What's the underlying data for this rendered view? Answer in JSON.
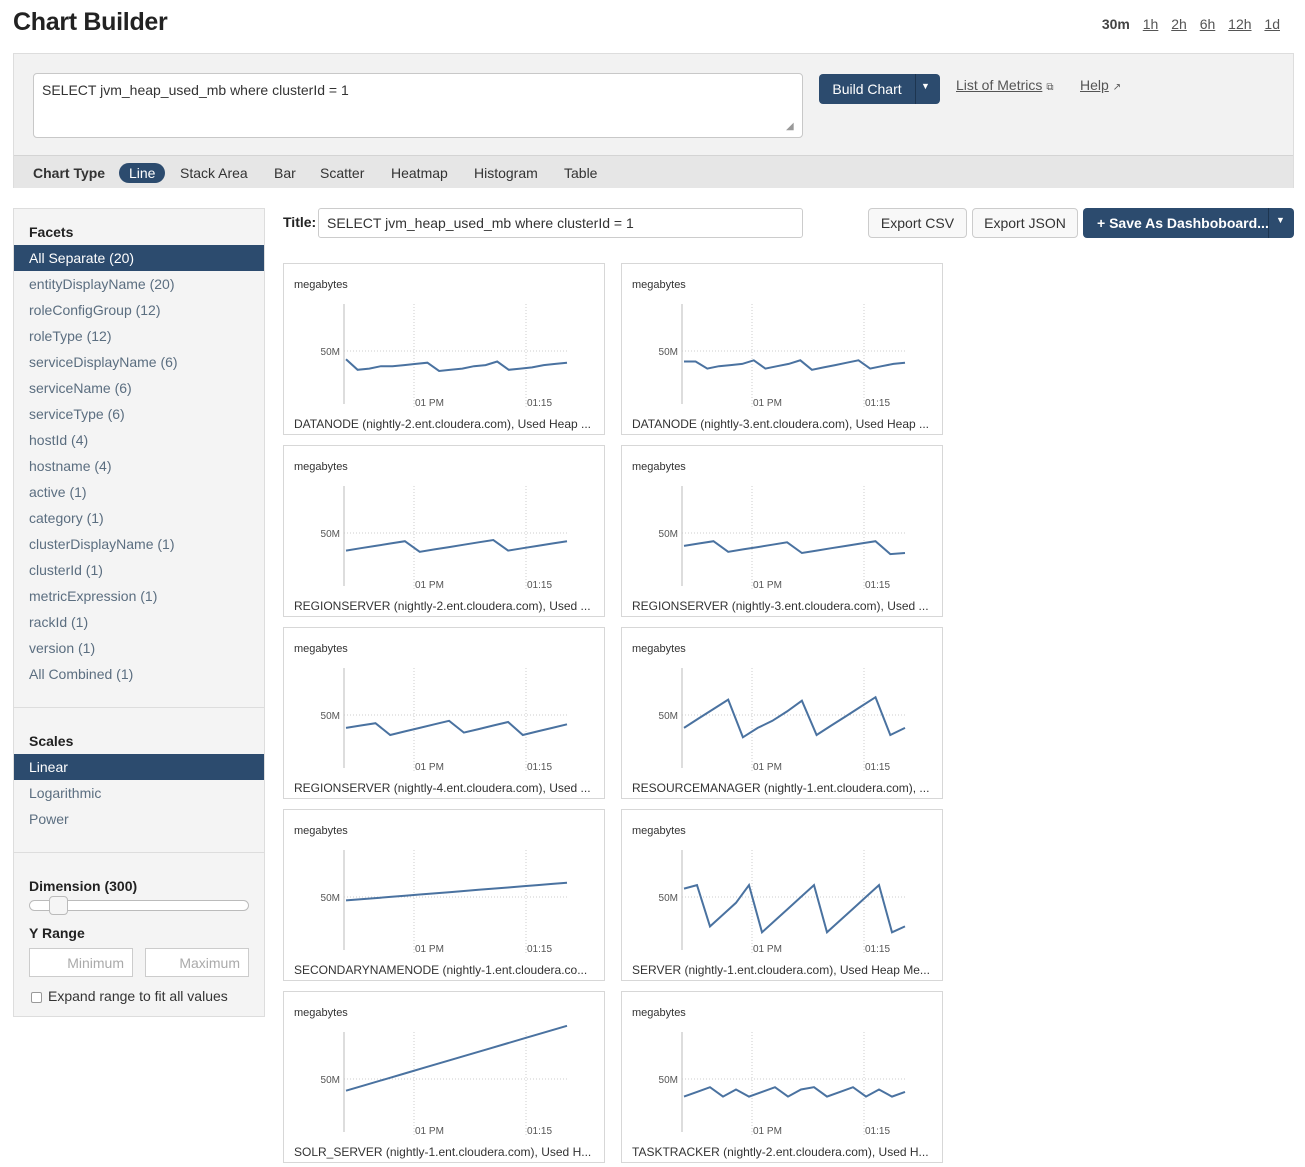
{
  "page": {
    "title": "Chart Builder"
  },
  "time_range": {
    "options": [
      "30m",
      "1h",
      "2h",
      "6h",
      "12h",
      "1d"
    ],
    "selected": "30m"
  },
  "query": {
    "value": "SELECT jvm_heap_used_mb where clusterId = 1"
  },
  "build_button": {
    "label": "Build Chart"
  },
  "links": {
    "metrics": "List of Metrics",
    "help": "Help"
  },
  "chart_types": {
    "label": "Chart Type",
    "options": [
      "Line",
      "Stack Area",
      "Bar",
      "Scatter",
      "Heatmap",
      "Histogram",
      "Table"
    ],
    "selected": "Line"
  },
  "facets": {
    "heading": "Facets",
    "items": [
      "All Separate (20)",
      "entityDisplayName (20)",
      "roleConfigGroup (12)",
      "roleType (12)",
      "serviceDisplayName (6)",
      "serviceName (6)",
      "serviceType (6)",
      "hostId (4)",
      "hostname (4)",
      "active (1)",
      "category (1)",
      "clusterDisplayName (1)",
      "clusterId (1)",
      "metricExpression (1)",
      "rackId (1)",
      "version (1)",
      "All Combined (1)"
    ],
    "selected_index": 0
  },
  "scales": {
    "heading": "Scales",
    "items": [
      "Linear",
      "Logarithmic",
      "Power"
    ],
    "selected_index": 0
  },
  "dimension": {
    "label": "Dimension (300)",
    "slider_fraction": 0.1
  },
  "y_range": {
    "label": "Y Range",
    "min_placeholder": "Minimum",
    "max_placeholder": "Maximum",
    "expand_label": "Expand range to fit all values",
    "expand_checked": false
  },
  "title_field": {
    "label": "Title:",
    "value": "SELECT jvm_heap_used_mb where clusterId = 1"
  },
  "actions": {
    "export_csv": "Export CSV",
    "export_json": "Export JSON",
    "save_dashboard": "Save As Dashboboard..."
  },
  "chart_data": [
    {
      "type": "line",
      "ylabel": "megabytes",
      "y_ticks": [
        "50M"
      ],
      "x_ticks": [
        "01 PM",
        "01:15"
      ],
      "caption": "DATANODE (nightly-2.ent.cloudera.com), Used Heap ...",
      "series": [
        {
          "values": [
            38,
            29,
            30,
            32,
            32,
            33,
            34,
            35,
            28,
            29,
            30,
            32,
            33,
            36,
            29,
            30,
            31,
            33,
            34,
            35
          ]
        }
      ]
    },
    {
      "type": "line",
      "ylabel": "megabytes",
      "y_ticks": [
        "50M"
      ],
      "x_ticks": [
        "01 PM",
        "01:15"
      ],
      "caption": "DATANODE (nightly-3.ent.cloudera.com), Used Heap ...",
      "series": [
        {
          "values": [
            36,
            36,
            30,
            32,
            33,
            34,
            37,
            30,
            32,
            34,
            37,
            29,
            31,
            33,
            35,
            37,
            30,
            32,
            34,
            35
          ]
        }
      ]
    },
    {
      "type": "line",
      "ylabel": "megabytes",
      "y_ticks": [
        "50M"
      ],
      "x_ticks": [
        "01 PM",
        "01:15"
      ],
      "caption": "REGIONSERVER (nightly-2.ent.cloudera.com), Used ...",
      "series": [
        {
          "values": [
            30,
            32,
            34,
            36,
            38,
            29,
            31,
            33,
            35,
            37,
            39,
            30,
            32,
            34,
            36,
            38
          ]
        }
      ]
    },
    {
      "type": "line",
      "ylabel": "megabytes",
      "y_ticks": [
        "50M"
      ],
      "x_ticks": [
        "01 PM",
        "01:15"
      ],
      "caption": "REGIONSERVER (nightly-3.ent.cloudera.com), Used ...",
      "series": [
        {
          "values": [
            34,
            36,
            38,
            29,
            31,
            33,
            35,
            37,
            28,
            30,
            32,
            34,
            36,
            38,
            27,
            28
          ]
        }
      ]
    },
    {
      "type": "line",
      "ylabel": "megabytes",
      "y_ticks": [
        "50M"
      ],
      "x_ticks": [
        "01 PM",
        "01:15"
      ],
      "caption": "REGIONSERVER (nightly-4.ent.cloudera.com), Used ...",
      "series": [
        {
          "values": [
            34,
            36,
            38,
            28,
            31,
            34,
            37,
            40,
            30,
            33,
            36,
            39,
            28,
            31,
            34,
            37
          ]
        }
      ]
    },
    {
      "type": "line",
      "ylabel": "megabytes",
      "y_ticks": [
        "50M"
      ],
      "x_ticks": [
        "01 PM",
        "01:15"
      ],
      "caption": "RESOURCEMANAGER (nightly-1.ent.cloudera.com), ...",
      "series": [
        {
          "values": [
            34,
            42,
            50,
            58,
            26,
            34,
            40,
            48,
            57,
            28,
            36,
            44,
            52,
            60,
            28,
            34
          ]
        }
      ]
    },
    {
      "type": "line",
      "ylabel": "megabytes",
      "y_ticks": [
        "50M"
      ],
      "x_ticks": [
        "01 PM",
        "01:15"
      ],
      "caption": "SECONDARYNAMENODE (nightly-1.ent.cloudera.co...",
      "series": [
        {
          "values": [
            42,
            43,
            44,
            45,
            46,
            47,
            48,
            49,
            50,
            51,
            52,
            53,
            54,
            55,
            56,
            57
          ]
        }
      ]
    },
    {
      "type": "line",
      "ylabel": "megabytes",
      "y_ticks": [
        "50M"
      ],
      "x_ticks": [
        "01 PM",
        "01:15"
      ],
      "caption": "SERVER (nightly-1.ent.cloudera.com), Used Heap Me...",
      "series": [
        {
          "values": [
            52,
            55,
            20,
            30,
            40,
            55,
            15,
            25,
            35,
            45,
            55,
            15,
            25,
            35,
            45,
            55,
            15,
            20
          ]
        }
      ]
    },
    {
      "type": "line",
      "ylabel": "megabytes",
      "y_ticks": [
        "50M"
      ],
      "x_ticks": [
        "01 PM",
        "01:15"
      ],
      "caption": "SOLR_SERVER (nightly-1.ent.cloudera.com), Used H...",
      "series": [
        {
          "values": [
            35,
            40,
            45,
            50,
            55,
            60,
            65,
            70,
            75,
            80,
            85,
            90
          ]
        }
      ]
    },
    {
      "type": "line",
      "ylabel": "megabytes",
      "y_ticks": [
        "50M"
      ],
      "x_ticks": [
        "01 PM",
        "01:15"
      ],
      "caption": "TASKTRACKER (nightly-2.ent.cloudera.com), Used H...",
      "series": [
        {
          "values": [
            30,
            34,
            38,
            30,
            36,
            30,
            34,
            38,
            30,
            36,
            38,
            30,
            34,
            38,
            30,
            36,
            30,
            34
          ]
        }
      ]
    }
  ]
}
